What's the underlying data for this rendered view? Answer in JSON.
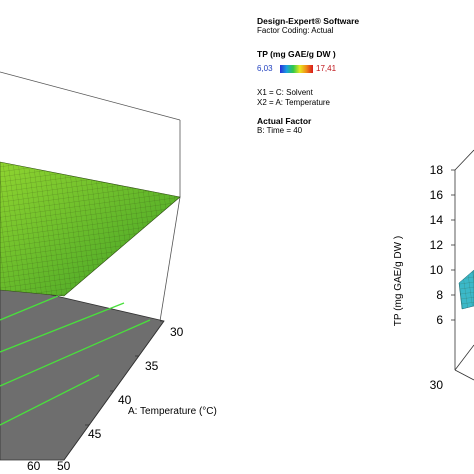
{
  "legend": {
    "software": "Design-Expert® Software",
    "coding": "Factor Coding: Actual",
    "response": "TP (mg GAE/g DW )",
    "range_min": "6,03",
    "range_max": "17,41",
    "x1": "X1 = C: Solvent",
    "x2": "X2 = A: Temperature",
    "actual_factor_title": "Actual Factor",
    "actual_factor_value": "B: Time = 40",
    "gradient_colors": [
      "#2b2bd9",
      "#1aa0e0",
      "#2fc84a",
      "#e8e820",
      "#f08a18",
      "#d8181c"
    ]
  },
  "chart_data": [
    {
      "type": "surface",
      "x_axis": {
        "label": "A: Temperature  (°C)",
        "ticks": [
          "30",
          "35",
          "40",
          "45",
          "50"
        ]
      },
      "y_axis_ticks_visible": [
        "60"
      ],
      "surface_color": "#6cbf2a",
      "contour_color": "#4ee040",
      "floor_color": "#6e6e6e"
    },
    {
      "type": "surface",
      "z_axis": {
        "label": "TP (mg GAE/g DW )",
        "ticks": [
          "6",
          "8",
          "10",
          "12",
          "14",
          "16",
          "18"
        ],
        "range": [
          6,
          18
        ]
      },
      "x_axis_ticks_visible": [
        "30"
      ],
      "surface_color": "#3bb8c8"
    }
  ]
}
